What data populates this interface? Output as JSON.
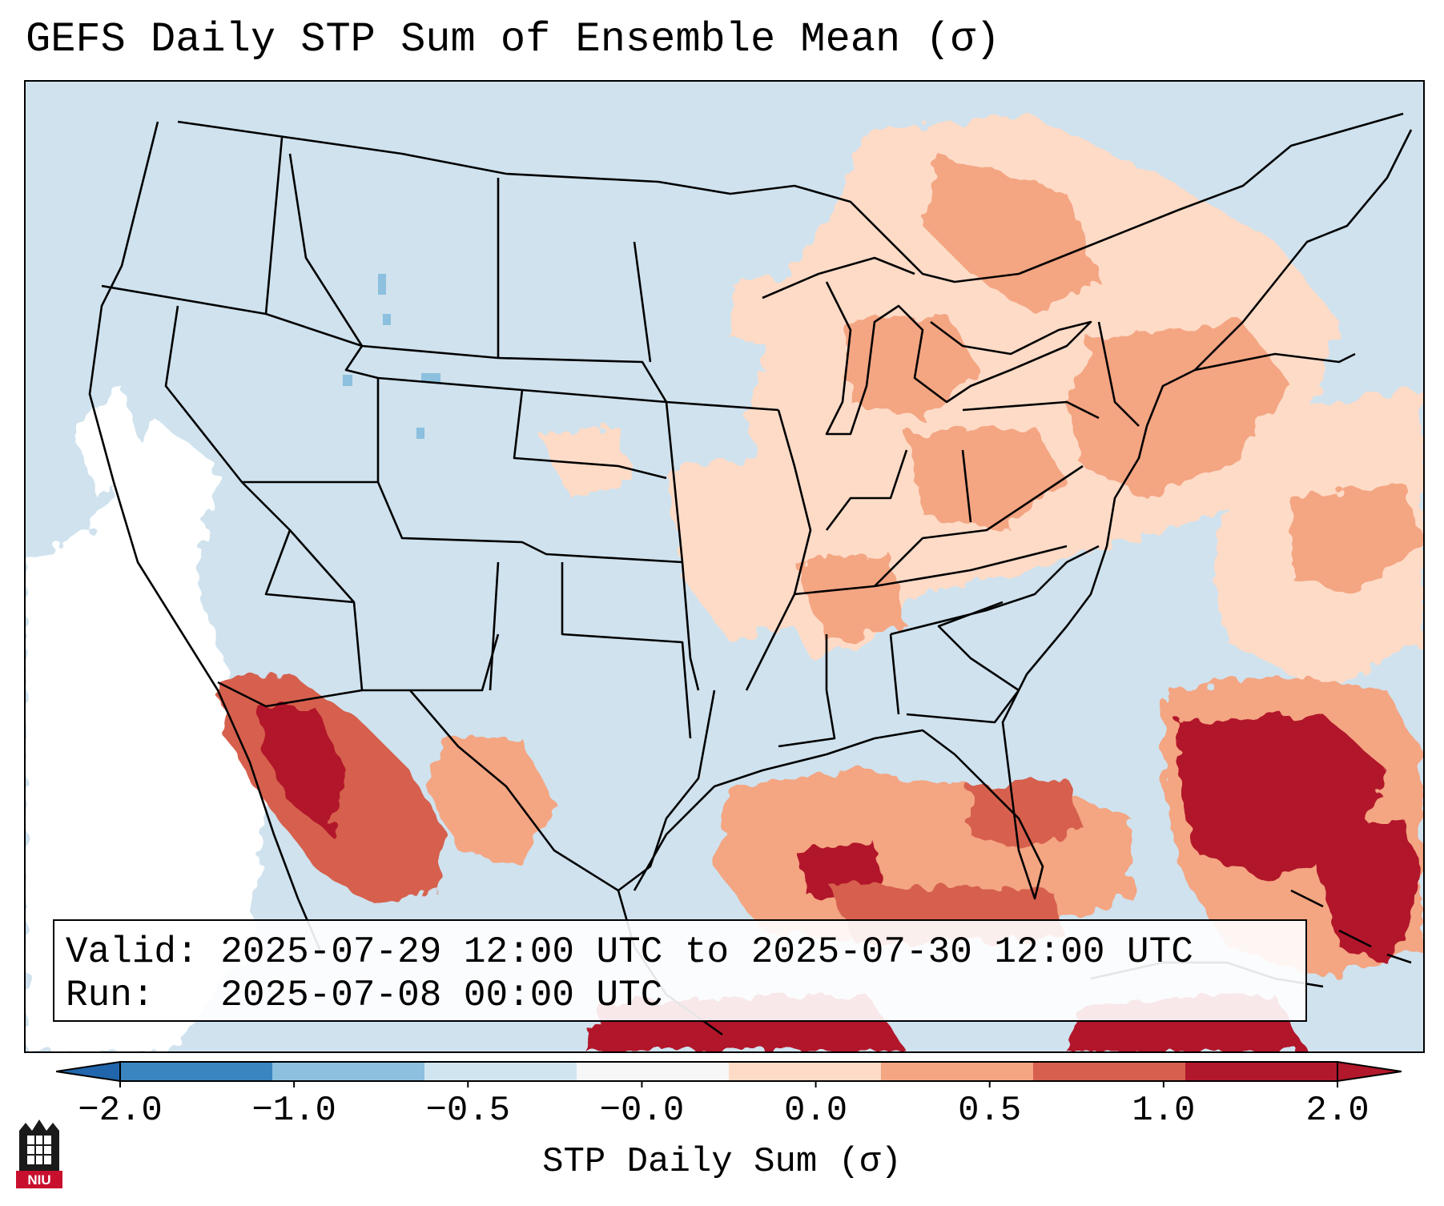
{
  "title": "GEFS Daily STP Sum of Ensemble Mean (σ)",
  "valid_label": "Valid:",
  "valid_value": "2025-07-29 12:00 UTC to 2025-07-30 12:00 UTC",
  "run_label": "Run:",
  "run_value": "2025-07-08 00:00 UTC",
  "colorbar": {
    "label": "STP Daily Sum (σ)",
    "ticks": [
      "−2.0",
      "−1.0",
      "−0.5",
      "−0.0",
      "0.0",
      "0.5",
      "1.0",
      "2.0"
    ],
    "colors": [
      "#3a85c0",
      "#8cc0de",
      "#d1e5f0",
      "#f7f7f7",
      "#fddbc7",
      "#f4a582",
      "#d6604d",
      "#b2182b"
    ],
    "extend_low_color": "#2166ac",
    "extend_high_color": "#b2182b"
  },
  "map": {
    "background_color": "#d1e5f0",
    "region": "Continental United States",
    "anomaly_regions": [
      {
        "area": "Southeast US coast / Western Atlantic",
        "sigma": 2.0
      },
      {
        "area": "Gulf of Mexico",
        "sigma": 1.5
      },
      {
        "area": "Gulf of California / NW Mexico",
        "sigma": 2.0
      },
      {
        "area": "Upper Midwest / Great Lakes",
        "sigma": 0.5
      },
      {
        "area": "Ohio Valley / Mid-Atlantic",
        "sigma": 0.75
      },
      {
        "area": "Northeast US / SE Canada",
        "sigma": 0.5
      },
      {
        "area": "Eastern Pacific offshore",
        "sigma": -0.25
      },
      {
        "area": "Western US interior",
        "sigma": -0.25
      }
    ]
  },
  "logo": {
    "text": "NIU",
    "color": "#c8102e"
  }
}
